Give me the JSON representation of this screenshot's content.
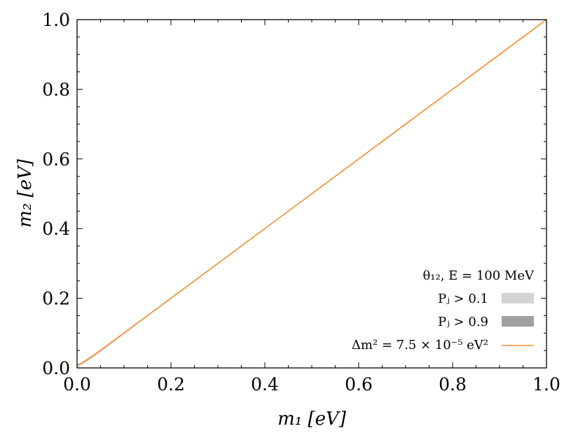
{
  "chart_data": {
    "type": "line",
    "xlabel": "m₁ [eV]",
    "ylabel": "m₂ [eV]",
    "xlim": [
      0.0,
      1.0
    ],
    "ylim": [
      0.0,
      1.0
    ],
    "xticks": [
      0.0,
      0.2,
      0.4,
      0.6,
      0.8,
      1.0
    ],
    "yticks": [
      0.0,
      0.2,
      0.4,
      0.6,
      0.8,
      1.0
    ],
    "xtick_labels": [
      "0.0",
      "0.2",
      "0.4",
      "0.6",
      "0.8",
      "1.0"
    ],
    "ytick_labels": [
      "0.0",
      "0.2",
      "0.4",
      "0.6",
      "0.8",
      "1.0"
    ],
    "grid": false,
    "legend_position": "bottom-right",
    "legend_title": "θ₁₂, E = 100 MeV",
    "regions": [
      {
        "name": "Pⱼ > 0.1",
        "color": "#d3d3d3",
        "x": [
          0.0,
          0.05,
          0.1,
          0.2,
          0.4,
          0.6,
          0.8,
          1.0
        ],
        "y_lower": [
          0.0,
          0.045,
          0.097,
          0.198,
          0.399,
          0.599,
          0.8,
          1.0
        ],
        "y_upper": [
          0.009,
          0.051,
          0.1,
          0.2,
          0.4,
          0.6,
          0.8,
          1.0
        ]
      },
      {
        "name": "Pⱼ > 0.9",
        "color": "#a0a0a0",
        "x": [],
        "y_lower": [],
        "y_upper": []
      }
    ],
    "series": [
      {
        "name": "Δm² = 7.5 × 10⁻⁵ eV²",
        "color": "#f28d2c",
        "delta_m2": 7.5e-05,
        "x": [
          0.0,
          0.01,
          0.02,
          0.05,
          0.1,
          0.2,
          0.3,
          0.4,
          0.5,
          0.6,
          0.7,
          0.8,
          0.9,
          1.0
        ],
        "y": [
          0.00866,
          0.01323,
          0.02179,
          0.05075,
          0.10037,
          0.20019,
          0.30012,
          0.40009,
          0.50008,
          0.60006,
          0.70005,
          0.80005,
          0.90004,
          1.00004
        ]
      }
    ]
  }
}
